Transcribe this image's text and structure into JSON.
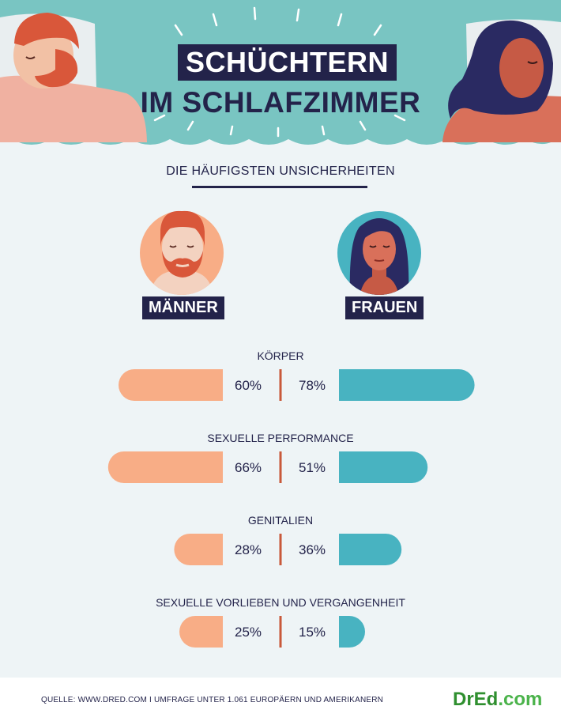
{
  "header": {
    "title_line1": "SCHÜCHTERN",
    "title_line2": "IM SCHLAFZIMMER"
  },
  "subtitle": "DIE HÄUFIGSTEN UNSICHERHEITEN",
  "groups": {
    "men_label": "MÄNNER",
    "women_label": "FRAUEN"
  },
  "colors": {
    "men": "#f8ad86",
    "women": "#48b3c1",
    "divider": "#c8593a",
    "dark": "#23234a"
  },
  "chart_data": {
    "type": "bar",
    "orientation": "horizontal-diverging",
    "categories": [
      "KÖRPER",
      "SEXUELLE PERFORMANCE",
      "GENITALIEN",
      "SEXUELLE VORLIEBEN UND VERGANGENHEIT"
    ],
    "series": [
      {
        "name": "MÄNNER",
        "values": [
          60,
          66,
          28,
          25
        ],
        "labels": [
          "60%",
          "66%",
          "28%",
          "25%"
        ]
      },
      {
        "name": "FRAUEN",
        "values": [
          78,
          51,
          36,
          15
        ],
        "labels": [
          "78%",
          "51%",
          "36%",
          "15%"
        ]
      }
    ],
    "unit": "%"
  },
  "footer": {
    "source": "QUELLE: WWW.DRED.COM I UMFRAGE UNTER 1.061 EUROPÄERN UND AMERIKANERN",
    "logo_main": "DrEd",
    "logo_suffix": ".com"
  }
}
